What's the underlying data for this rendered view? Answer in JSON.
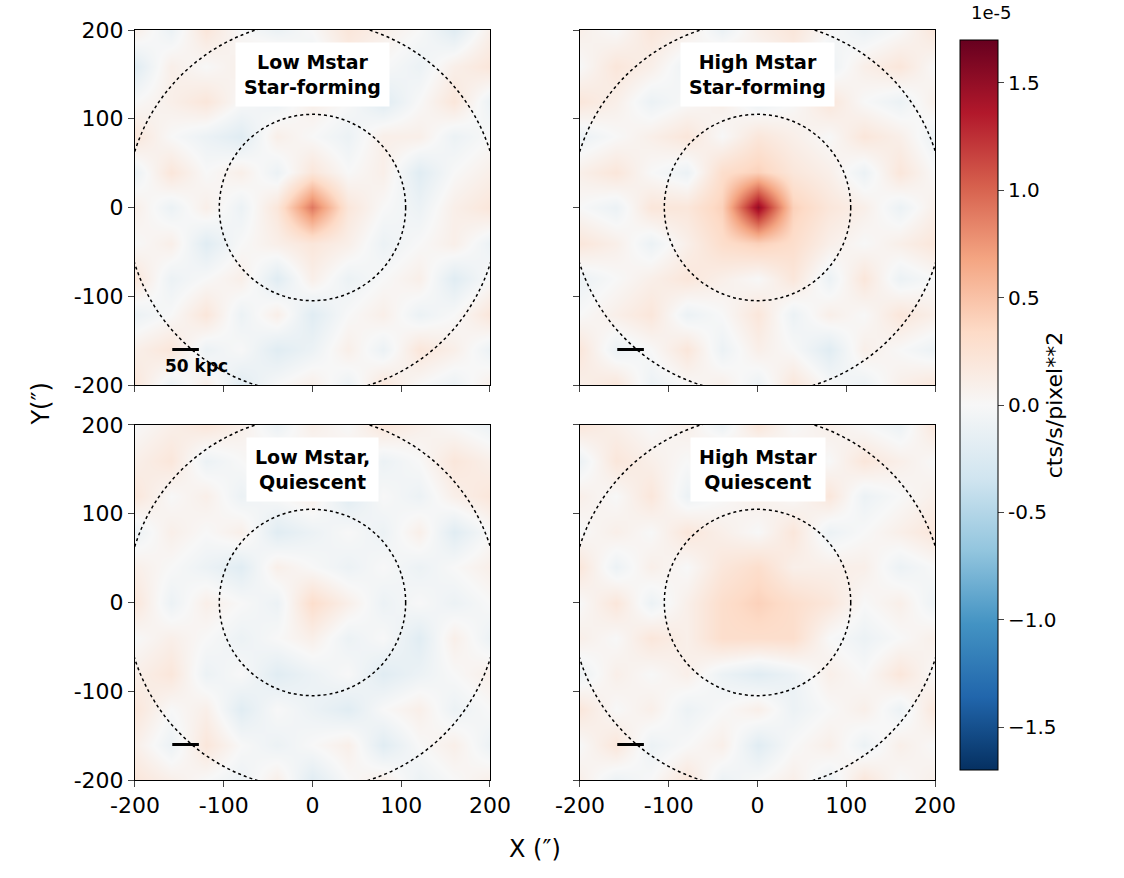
{
  "chart_data": {
    "type": "heatmap",
    "xlabel": "X (″)",
    "ylabel": "Y(″)",
    "x": [
      -200,
      -160,
      -120,
      -80,
      -40,
      0,
      40,
      80,
      120,
      160,
      200
    ],
    "y": [
      -200,
      -160,
      -120,
      -80,
      -40,
      0,
      40,
      80,
      120,
      160,
      200
    ],
    "xlim": [
      -200,
      200
    ],
    "ylim": [
      -200,
      200
    ],
    "xticks": [
      -200,
      -100,
      0,
      100,
      200
    ],
    "yticks": [
      -200,
      -100,
      0,
      100,
      200
    ],
    "circle_radii": [
      105,
      210
    ],
    "scale_bar": {
      "label": "50 kpc",
      "x": [
        -158,
        -128
      ],
      "y": -160
    },
    "colorbar": {
      "range": [
        -1.7,
        1.7
      ],
      "ticks": [
        1.5,
        {
          "value": 1,
          "label": "1.0"
        },
        0.5,
        {
          "value": 0,
          "label": "0.0"
        },
        -0.5,
        {
          "value": -1,
          "label": "−1.0"
        },
        {
          "value": -1.5,
          "label": "−1.5"
        }
      ],
      "title": "cts/s/pixel**2",
      "exponent_label": "1e-5"
    },
    "panels": [
      {
        "title": "Low Mstar Star-forming",
        "tick_labels": "y",
        "z": [
          [
            0.2,
            -0.1,
            0.1,
            -0.2,
            0.0,
            0.1,
            -0.1,
            0.2,
            0.0,
            -0.1,
            0.1
          ],
          [
            0.1,
            0.2,
            -0.1,
            0.0,
            -0.2,
            -0.1,
            0.1,
            -0.1,
            0.2,
            0.1,
            -0.1
          ],
          [
            -0.1,
            0.0,
            0.2,
            -0.1,
            0.1,
            -0.2,
            0.0,
            0.1,
            -0.1,
            0.0,
            0.2
          ],
          [
            0.2,
            -0.1,
            0.0,
            0.1,
            -0.2,
            0.1,
            -0.1,
            0.0,
            0.1,
            -0.2,
            0.0
          ],
          [
            0.0,
            0.1,
            -0.2,
            0.0,
            0.1,
            0.2,
            0.1,
            -0.1,
            0.0,
            0.1,
            -0.1
          ],
          [
            0.1,
            -0.1,
            0.1,
            -0.1,
            0.2,
            0.9,
            0.2,
            0.0,
            -0.1,
            0.1,
            0.2
          ],
          [
            -0.1,
            0.2,
            0.0,
            0.1,
            -0.1,
            0.2,
            0.0,
            0.1,
            -0.2,
            0.0,
            0.1
          ],
          [
            0.2,
            0.0,
            -0.1,
            -0.2,
            0.1,
            0.0,
            -0.1,
            0.1,
            0.1,
            -0.1,
            0.0
          ],
          [
            0.0,
            0.1,
            0.2,
            0.0,
            -0.1,
            0.1,
            0.0,
            -0.2,
            0.0,
            0.2,
            -0.1
          ],
          [
            -0.2,
            0.1,
            0.0,
            0.1,
            0.2,
            -0.1,
            0.1,
            0.0,
            -0.1,
            0.1,
            0.2
          ],
          [
            0.1,
            -0.1,
            0.2,
            0.0,
            -0.1,
            0.0,
            0.2,
            0.1,
            0.0,
            -0.2,
            0.1
          ]
        ]
      },
      {
        "title": "High Mstar Star-forming",
        "tick_labels": false,
        "z": [
          [
            0.1,
            0.2,
            -0.1,
            0.0,
            0.1,
            -0.1,
            0.2,
            0.0,
            -0.1,
            0.1,
            0.2
          ],
          [
            0.2,
            -0.1,
            0.0,
            0.2,
            -0.1,
            0.1,
            0.0,
            -0.2,
            0.1,
            0.0,
            -0.1
          ],
          [
            0.0,
            0.1,
            0.2,
            -0.1,
            0.0,
            0.2,
            -0.1,
            0.1,
            0.0,
            0.2,
            0.1
          ],
          [
            -0.1,
            0.0,
            0.1,
            0.2,
            0.1,
            0.0,
            0.2,
            -0.1,
            0.2,
            -0.1,
            0.0
          ],
          [
            0.2,
            0.1,
            -0.1,
            0.1,
            0.3,
            0.4,
            0.3,
            0.1,
            0.0,
            0.1,
            0.2
          ],
          [
            0.0,
            -0.1,
            0.2,
            0.2,
            0.4,
            1.5,
            0.4,
            0.2,
            0.1,
            -0.1,
            0.1
          ],
          [
            0.1,
            0.2,
            0.0,
            -0.1,
            0.3,
            0.4,
            0.2,
            0.1,
            -0.1,
            0.2,
            0.0
          ],
          [
            -0.1,
            0.0,
            0.1,
            0.2,
            0.0,
            0.2,
            0.1,
            0.0,
            0.2,
            0.1,
            -0.1
          ],
          [
            0.2,
            0.1,
            -0.1,
            0.0,
            0.1,
            -0.1,
            0.0,
            0.2,
            0.0,
            -0.1,
            0.1
          ],
          [
            0.0,
            0.2,
            0.1,
            -0.1,
            0.2,
            0.0,
            0.1,
            -0.1,
            0.1,
            0.2,
            0.0
          ],
          [
            0.1,
            0.0,
            0.2,
            0.1,
            -0.1,
            0.1,
            0.2,
            0.0,
            -0.1,
            0.0,
            0.2
          ]
        ]
      },
      {
        "title": "Low Mstar, Quiescent",
        "tick_labels": true,
        "z": [
          [
            0.2,
            0.1,
            0.0,
            -0.1,
            0.1,
            -0.2,
            0.0,
            0.1,
            -0.1,
            0.0,
            0.1
          ],
          [
            0.1,
            -0.1,
            0.2,
            0.0,
            -0.1,
            0.0,
            0.1,
            -0.2,
            0.0,
            0.1,
            -0.1
          ],
          [
            0.2,
            0.0,
            0.1,
            -0.2,
            0.0,
            -0.1,
            -0.2,
            0.0,
            0.1,
            -0.1,
            0.0
          ],
          [
            0.1,
            0.2,
            -0.1,
            0.0,
            -0.2,
            -0.1,
            0.0,
            -0.2,
            -0.1,
            0.0,
            0.1
          ],
          [
            0.0,
            0.1,
            0.0,
            -0.1,
            0.0,
            0.1,
            -0.1,
            0.0,
            -0.2,
            0.1,
            -0.1
          ],
          [
            0.2,
            -0.1,
            0.1,
            0.0,
            -0.1,
            0.3,
            0.1,
            -0.1,
            0.0,
            -0.1,
            0.0
          ],
          [
            0.1,
            0.0,
            -0.1,
            -0.2,
            0.1,
            0.0,
            -0.1,
            0.0,
            -0.1,
            0.0,
            0.1
          ],
          [
            -0.1,
            0.1,
            0.0,
            0.1,
            -0.2,
            -0.1,
            0.0,
            -0.1,
            0.1,
            -0.2,
            0.0
          ],
          [
            0.2,
            0.0,
            0.1,
            -0.1,
            0.0,
            0.1,
            -0.2,
            0.0,
            -0.1,
            0.1,
            0.2
          ],
          [
            0.1,
            0.2,
            -0.1,
            0.0,
            0.1,
            0.0,
            0.1,
            -0.1,
            0.0,
            0.2,
            0.1
          ],
          [
            0.0,
            0.1,
            0.2,
            0.1,
            -0.1,
            0.1,
            0.0,
            0.2,
            0.1,
            0.0,
            -0.1
          ]
        ]
      },
      {
        "title": "High Mstar Quiescent",
        "tick_labels": "x",
        "z": [
          [
            0.1,
            -0.1,
            0.0,
            0.2,
            -0.1,
            0.0,
            0.1,
            -0.1,
            0.2,
            0.0,
            0.1
          ],
          [
            0.0,
            0.2,
            -0.1,
            0.0,
            0.1,
            -0.2,
            0.0,
            0.1,
            -0.1,
            0.1,
            0.0
          ],
          [
            0.2,
            0.0,
            0.1,
            -0.1,
            0.0,
            0.1,
            -0.1,
            0.0,
            0.1,
            -0.1,
            0.2
          ],
          [
            -0.1,
            0.1,
            0.0,
            0.1,
            -0.1,
            -0.2,
            -0.1,
            0.1,
            0.0,
            0.2,
            0.0
          ],
          [
            0.1,
            0.0,
            0.2,
            0.1,
            0.3,
            0.3,
            0.3,
            0.0,
            -0.1,
            0.0,
            0.1
          ],
          [
            0.0,
            0.2,
            -0.1,
            0.1,
            0.3,
            0.4,
            0.3,
            0.2,
            0.0,
            0.1,
            -0.1
          ],
          [
            0.2,
            -0.1,
            0.1,
            0.0,
            0.2,
            0.3,
            0.1,
            0.1,
            0.1,
            -0.1,
            0.0
          ],
          [
            0.0,
            0.1,
            0.0,
            0.2,
            0.1,
            0.0,
            0.2,
            -0.1,
            0.0,
            0.1,
            0.2
          ],
          [
            0.1,
            0.0,
            0.2,
            -0.1,
            0.0,
            0.1,
            0.0,
            0.2,
            -0.1,
            0.0,
            0.1
          ],
          [
            -0.1,
            0.2,
            0.1,
            0.0,
            0.2,
            -0.1,
            0.1,
            0.0,
            0.2,
            0.1,
            0.0
          ],
          [
            0.2,
            0.1,
            0.0,
            0.1,
            -0.1,
            0.2,
            0.0,
            0.1,
            0.0,
            -0.1,
            0.2
          ]
        ]
      }
    ]
  }
}
